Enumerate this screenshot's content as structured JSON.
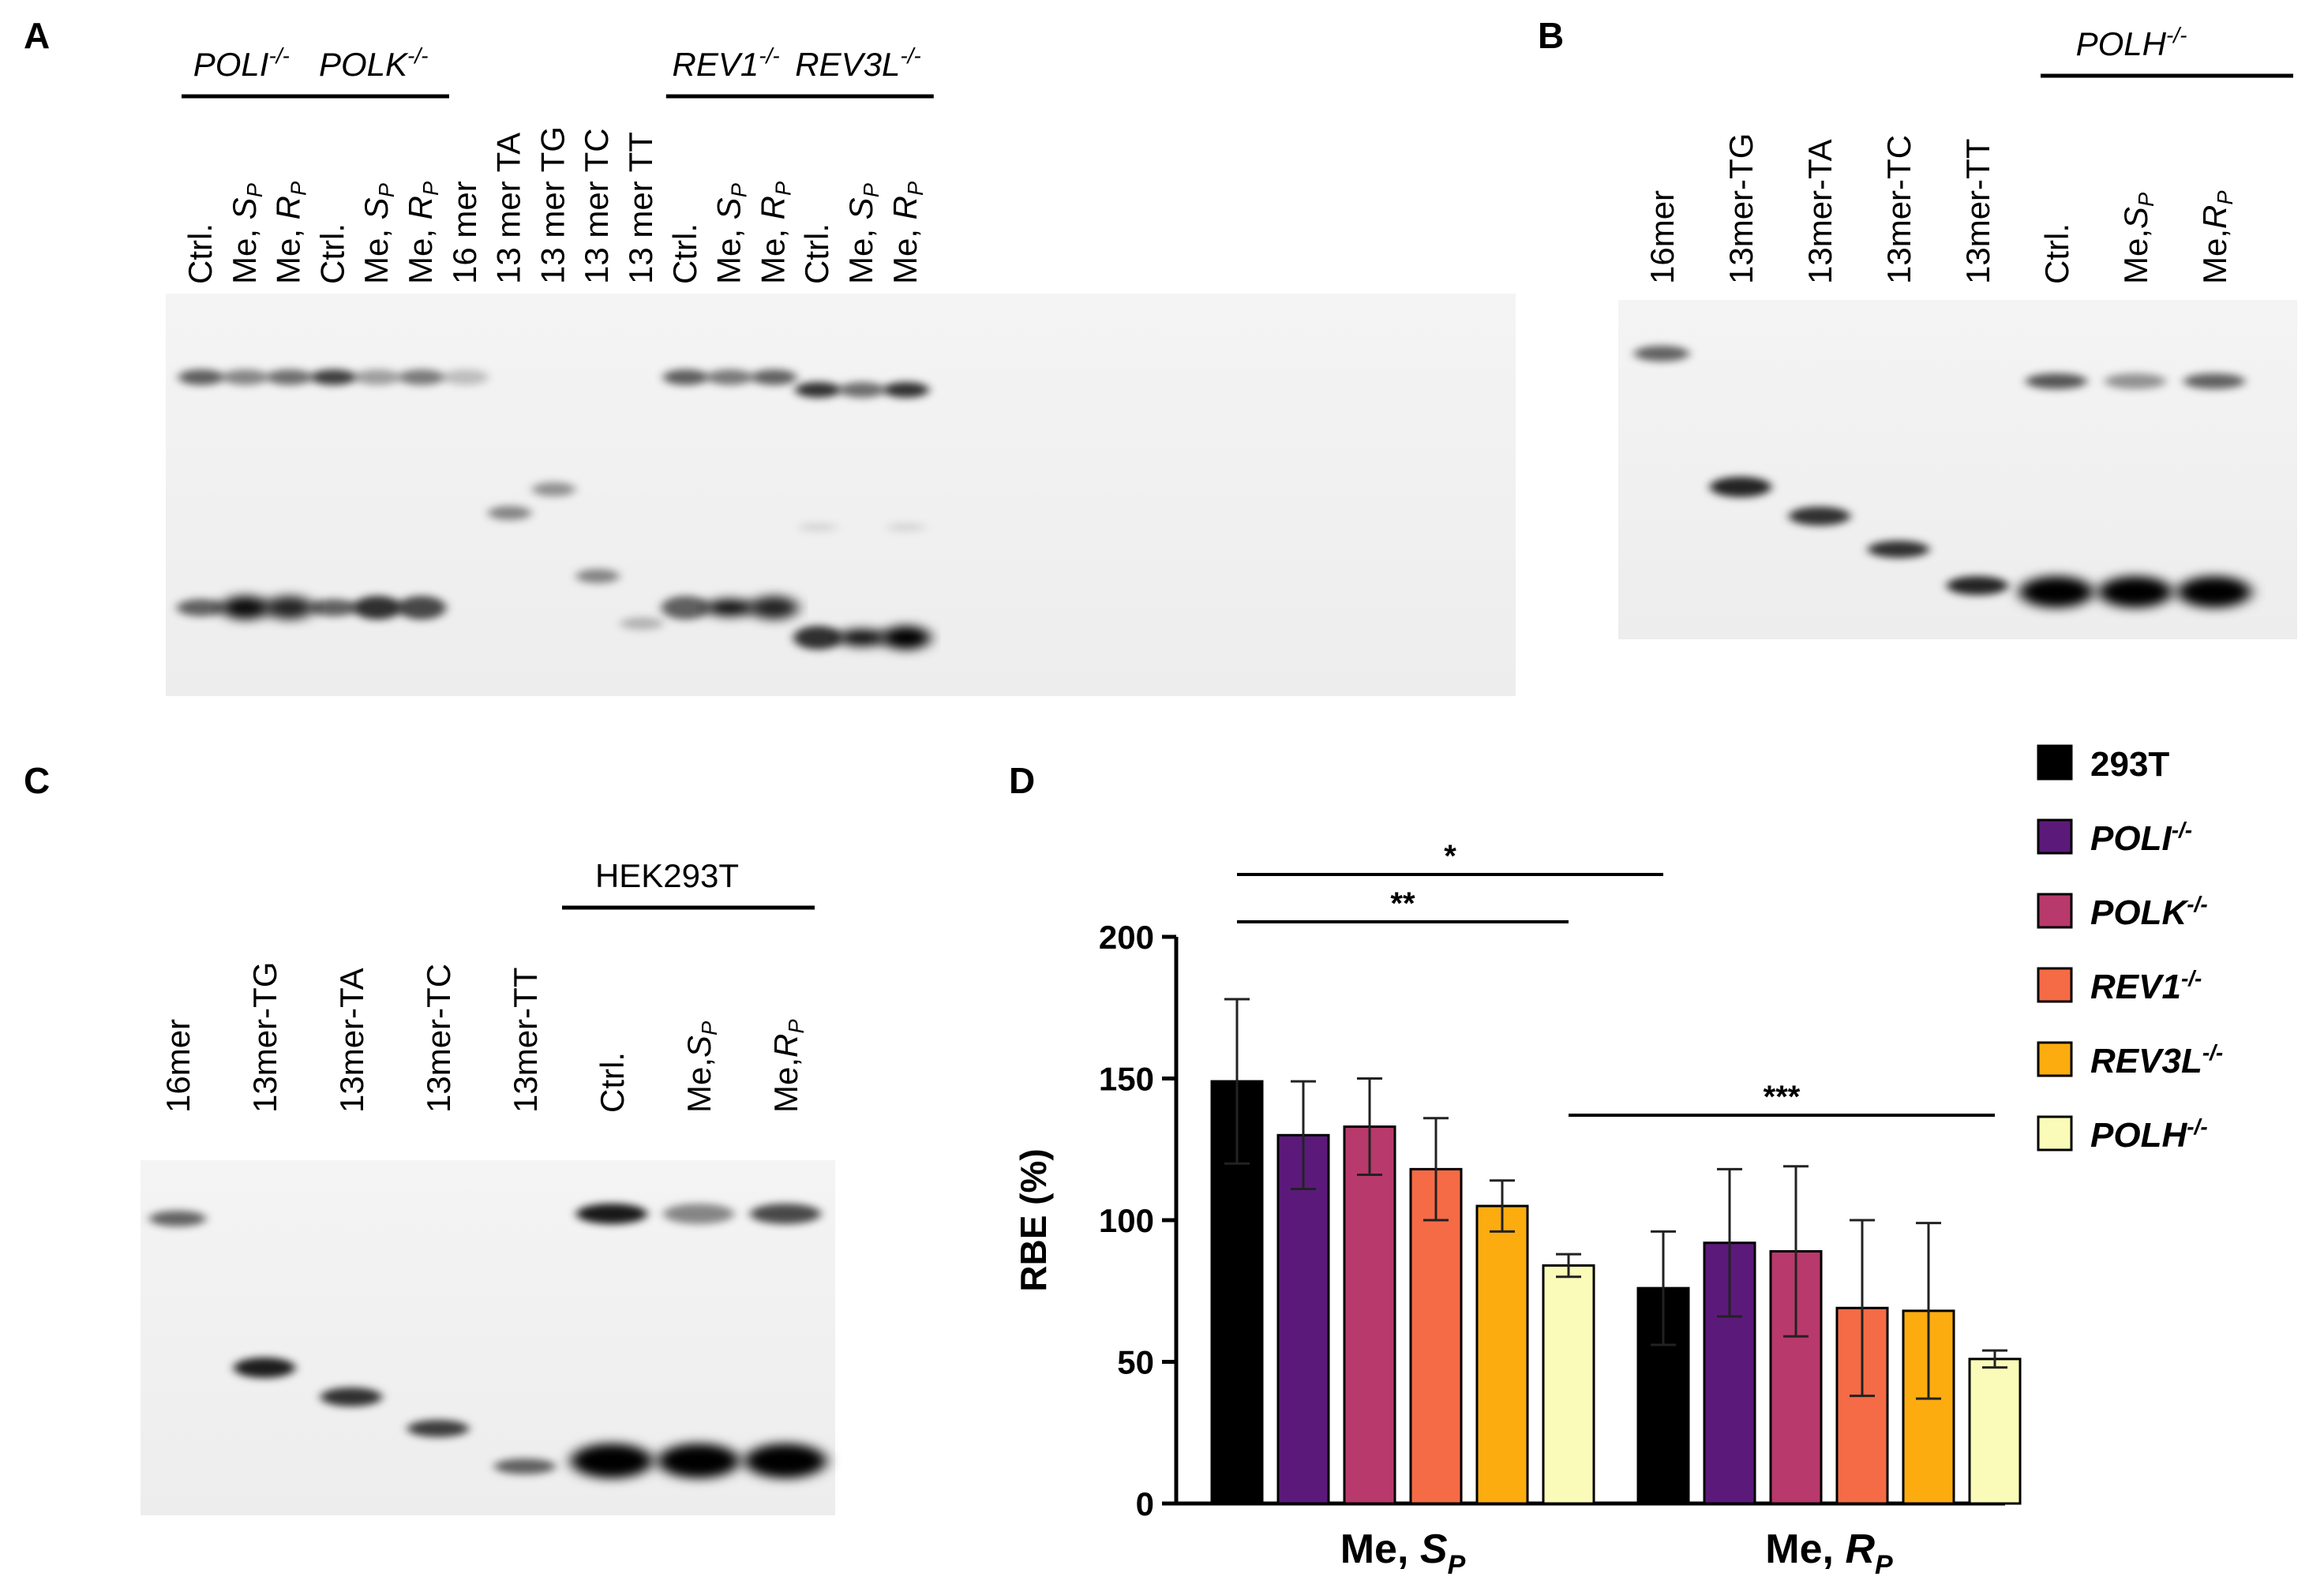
{
  "panels": {
    "A": "A",
    "B": "B",
    "C": "C",
    "D": "D"
  },
  "gel_A": {
    "groups": [
      {
        "gene": "POLI",
        "sup": "-/-"
      },
      {
        "gene": "POLK",
        "sup": "-/-"
      },
      {
        "gene": "REV1",
        "sup": "-/-"
      },
      {
        "gene": "REV3L",
        "sup": "-/-"
      }
    ],
    "lanes": [
      {
        "main": "Ctrl.",
        "sub": ""
      },
      {
        "main": "Me, ",
        "ital": "S",
        "sub": "P"
      },
      {
        "main": "Me, ",
        "ital": "R",
        "sub": "P"
      },
      {
        "main": "Ctrl.",
        "sub": ""
      },
      {
        "main": "Me, ",
        "ital": "S",
        "sub": "P"
      },
      {
        "main": "Me, ",
        "ital": "R",
        "sub": "P"
      },
      {
        "main": "16 mer",
        "sub": ""
      },
      {
        "main": "13 mer TA",
        "sub": ""
      },
      {
        "main": "13 mer TG",
        "sub": ""
      },
      {
        "main": "13 mer TC",
        "sub": ""
      },
      {
        "main": "13 mer TT",
        "sub": ""
      },
      {
        "main": "Ctrl.",
        "sub": ""
      },
      {
        "main": "Me, ",
        "ital": "S",
        "sub": "P"
      },
      {
        "main": "Me, ",
        "ital": "R",
        "sub": "P"
      },
      {
        "main": "Ctrl.",
        "sub": ""
      },
      {
        "main": "Me, ",
        "ital": "S",
        "sub": "P"
      },
      {
        "main": "Me, ",
        "ital": "R",
        "sub": "P"
      }
    ]
  },
  "gel_B": {
    "group": {
      "gene": "POLH",
      "sup": "-/-"
    },
    "lanes": [
      {
        "main": "16mer"
      },
      {
        "main": "13mer-TG"
      },
      {
        "main": "13mer-TA"
      },
      {
        "main": "13mer-TC"
      },
      {
        "main": "13mer-TT"
      },
      {
        "main": "Ctrl."
      },
      {
        "main": "Me,",
        "ital": "S",
        "sub": "P"
      },
      {
        "main": "Me,",
        "ital": "R",
        "sub": "P"
      }
    ]
  },
  "gel_C": {
    "group": {
      "label": "HEK293T"
    },
    "lanes": [
      {
        "main": "16mer"
      },
      {
        "main": "13mer-TG"
      },
      {
        "main": "13mer-TA"
      },
      {
        "main": "13mer-TC"
      },
      {
        "main": "13mer-TT"
      },
      {
        "main": "Ctrl."
      },
      {
        "main": "Me,",
        "ital": "S",
        "sub": "P"
      },
      {
        "main": "Me,",
        "ital": "R",
        "sub": "P"
      }
    ]
  },
  "chart_data": {
    "type": "bar",
    "ylabel": "RBE (%)",
    "ylim": [
      0,
      200
    ],
    "yticks": [
      0,
      50,
      100,
      150,
      200
    ],
    "categories": [
      {
        "prefix": "Me, ",
        "ital": "S",
        "sub": "P"
      },
      {
        "prefix": "Me, ",
        "ital": "R",
        "sub": "P"
      }
    ],
    "series": [
      {
        "name": "293T",
        "sup": "",
        "color": "#000000",
        "values": [
          149,
          76
        ],
        "errors": [
          29,
          20
        ]
      },
      {
        "name": "POLI",
        "sup": "-/-",
        "color": "#5b1a7a",
        "values": [
          130,
          92
        ],
        "errors": [
          19,
          26
        ]
      },
      {
        "name": "POLK",
        "sup": "-/-",
        "color": "#b8396b",
        "values": [
          133,
          89
        ],
        "errors": [
          17,
          30
        ]
      },
      {
        "name": "REV1",
        "sup": "-/-",
        "color": "#f56b46",
        "values": [
          118,
          69
        ],
        "errors": [
          18,
          31
        ]
      },
      {
        "name": "REV3L",
        "sup": "-/-",
        "color": "#fcac0f",
        "values": [
          105,
          68
        ],
        "errors": [
          9,
          31
        ]
      },
      {
        "name": "POLH",
        "sup": "-/-",
        "color": "#fbfbb9",
        "values": [
          84,
          51
        ],
        "errors": [
          4,
          3
        ]
      }
    ],
    "significance": [
      {
        "label": "*",
        "from": [
          0,
          0
        ],
        "to": [
          1,
          0
        ]
      },
      {
        "label": "**",
        "from": [
          0,
          0
        ],
        "to": [
          0,
          5
        ]
      },
      {
        "label": "***",
        "from": [
          0,
          5
        ],
        "to": [
          1,
          5
        ]
      }
    ],
    "legend_position": "top-right",
    "grid": false
  }
}
